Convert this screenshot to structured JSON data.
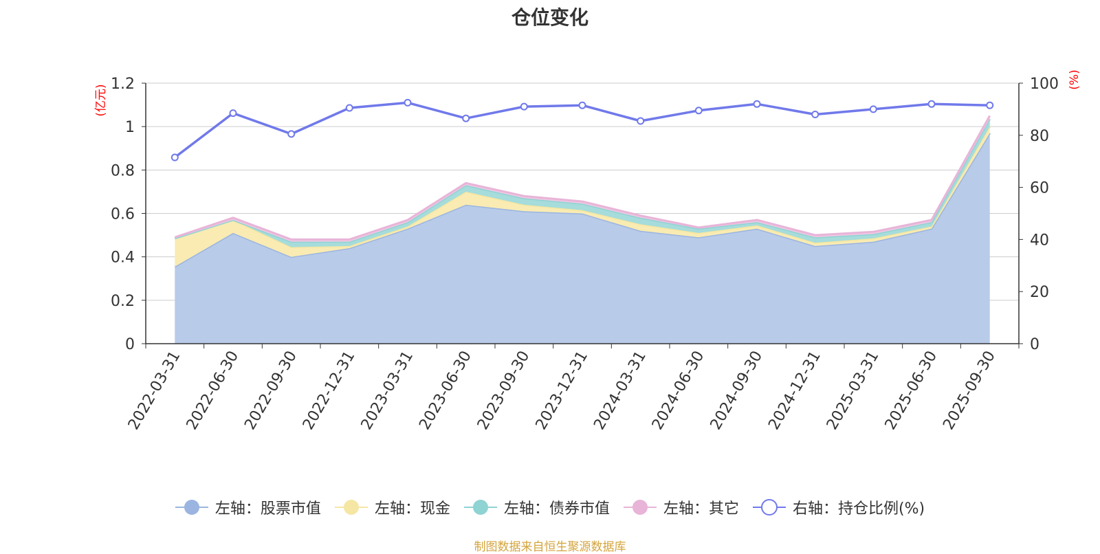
{
  "title": "仓位变化",
  "source": "制图数据来自恒生聚源数据库",
  "left_unit": "(亿元)",
  "right_unit": "(%)",
  "chart_data": {
    "type": "area",
    "title": "仓位变化",
    "categories": [
      "2022-03-31",
      "2022-06-30",
      "2022-09-30",
      "2022-12-31",
      "2023-03-31",
      "2023-06-30",
      "2023-09-30",
      "2023-12-31",
      "2024-03-31",
      "2024-06-30",
      "2024-09-30",
      "2024-12-31",
      "2025-03-31",
      "2025-06-30",
      "2025-09-30"
    ],
    "left_axis": {
      "unit": "(亿元)",
      "min": 0,
      "max": 1.2,
      "ticks": [
        "0",
        "0.2",
        "0.4",
        "0.6",
        "0.8",
        "1",
        "1.2"
      ]
    },
    "right_axis": {
      "unit": "(%)",
      "min": 0,
      "max": 100,
      "ticks": [
        "0",
        "20",
        "40",
        "60",
        "80",
        "100"
      ]
    },
    "stacked": true,
    "series": [
      {
        "name": "左轴：股票市值",
        "axis": "left",
        "type": "area",
        "color": "#9bb5e0",
        "fill": "#b8cbe9",
        "values": [
          0.355,
          0.51,
          0.4,
          0.44,
          0.53,
          0.64,
          0.61,
          0.6,
          0.52,
          0.49,
          0.53,
          0.45,
          0.47,
          0.53,
          0.97
        ]
      },
      {
        "name": "左轴：现金",
        "axis": "left",
        "type": "area",
        "color": "#f5e6a3",
        "fill": "#f9ebb2",
        "values": [
          0.13,
          0.06,
          0.045,
          0.01,
          0.01,
          0.06,
          0.03,
          0.015,
          0.03,
          0.02,
          0.015,
          0.015,
          0.015,
          0.01,
          0.03
        ]
      },
      {
        "name": "左轴：债券市值",
        "axis": "left",
        "type": "area",
        "color": "#8fd3d3",
        "fill": "#a6dcdb",
        "values": [
          0.0,
          0.0,
          0.025,
          0.02,
          0.02,
          0.03,
          0.03,
          0.03,
          0.03,
          0.02,
          0.015,
          0.025,
          0.02,
          0.02,
          0.035
        ]
      },
      {
        "name": "左轴：其它",
        "axis": "left",
        "type": "area",
        "color": "#e8b4d8",
        "fill": "#f0c9e3",
        "values": [
          0.005,
          0.01,
          0.01,
          0.01,
          0.01,
          0.01,
          0.01,
          0.01,
          0.01,
          0.005,
          0.01,
          0.01,
          0.01,
          0.01,
          0.015
        ]
      },
      {
        "name": "右轴：持仓比例(%)",
        "axis": "right",
        "type": "line",
        "color": "#7079ea",
        "values": [
          71.5,
          88.5,
          80.5,
          90.5,
          92.5,
          86.5,
          91,
          91.5,
          85.5,
          89.5,
          92,
          88,
          90,
          92,
          91.5
        ]
      }
    ],
    "legend_position": "bottom"
  }
}
